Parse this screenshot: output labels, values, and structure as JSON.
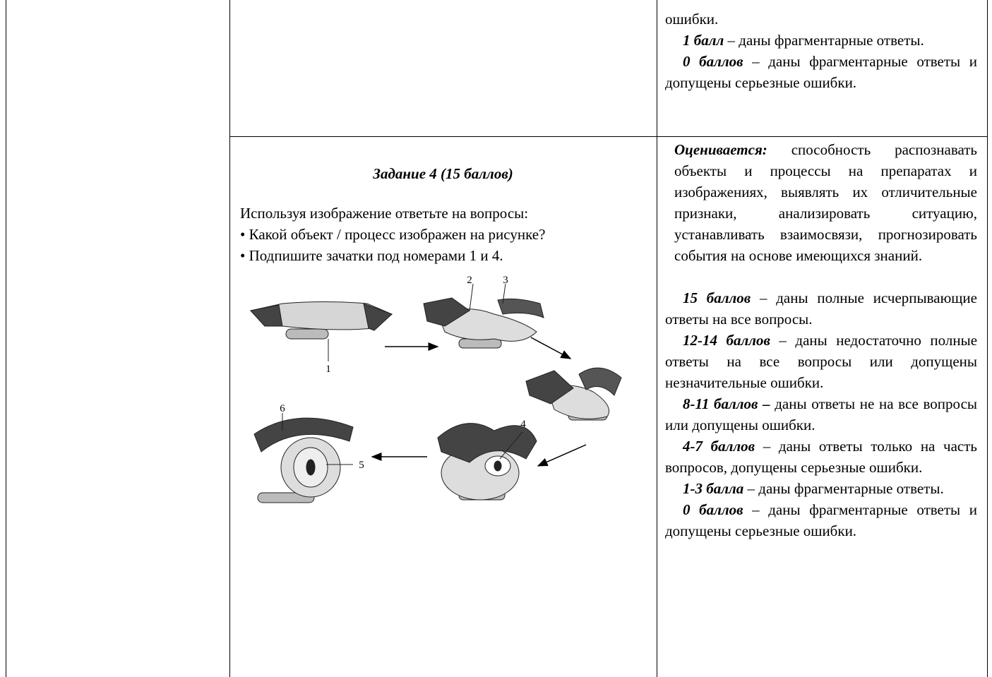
{
  "table": {
    "row1": {
      "criteria": [
        {
          "text": "ошибки."
        },
        {
          "lead": "1 балл",
          "text": "– даны фрагментарные ответы."
        },
        {
          "lead": "0 баллов",
          "text": "– даны фрагментарные ответы и допущены серьезные ошибки."
        }
      ]
    },
    "row2": {
      "task": {
        "title": "Задание 4 (15 баллов)",
        "intro": "Используя изображение ответьте на вопросы:",
        "bullets": [
          "Какой объект / процесс изображен на рисунке?",
          "Подпишите зачатки под номерами 1 и 4."
        ],
        "figure_labels": [
          "1",
          "2",
          "3",
          "4",
          "5",
          "6"
        ]
      },
      "criteria": [
        {
          "lead": "Оценивается:",
          "text": "способность распознавать объекты и процессы на препаратах и изображениях, выявлять их отличительные признаки, анализировать ситуацию, устанавливать взаимосвязи, прогнозировать события на основе имеющихся знаний."
        },
        {
          "lead": "15 баллов",
          "text": "– даны полные исчерпывающие ответы на все вопросы."
        },
        {
          "lead": "12-14 баллов",
          "text": "– даны недостаточно полные ответы на все вопросы или допущены незначительные ошибки."
        },
        {
          "lead": "8-11 баллов –",
          "text": "даны ответы не на все вопросы или допущены ошибки."
        },
        {
          "lead": "4-7 баллов",
          "text": "– даны ответы только на часть вопросов, допущены серьезные ошибки."
        },
        {
          "lead": "1-3 балла",
          "text": "– даны фрагментарные ответы."
        },
        {
          "lead": "0 баллов",
          "text": "– даны фрагментарные ответы и допущены серьезные ошибки."
        }
      ]
    }
  }
}
